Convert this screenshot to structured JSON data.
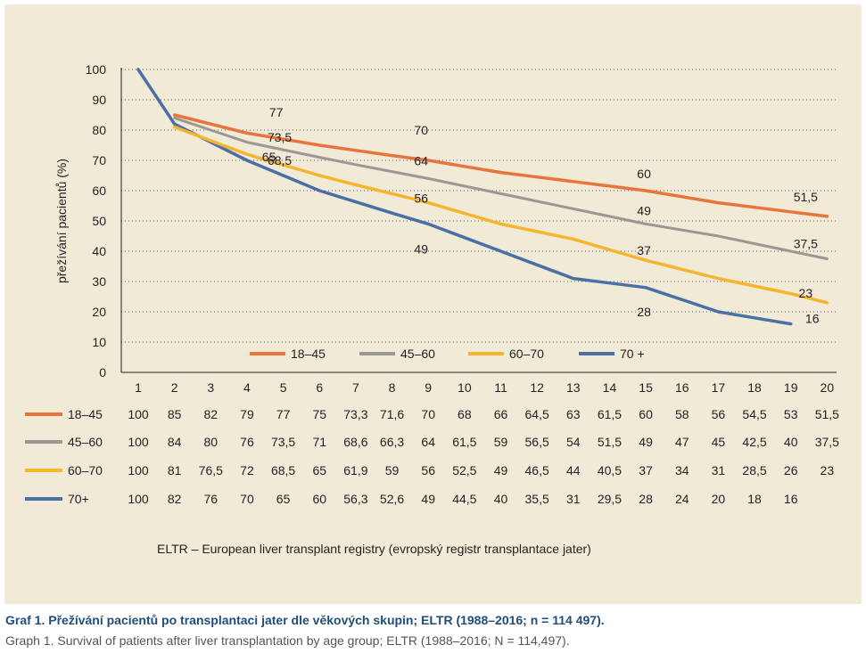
{
  "chart_data": {
    "type": "line",
    "title": "",
    "xlabel": "",
    "ylabel": "přežívání pacientů (%)",
    "ylim": [
      0,
      100
    ],
    "yticks": [
      0,
      10,
      20,
      30,
      40,
      50,
      60,
      70,
      80,
      90,
      100
    ],
    "x": [
      1,
      2,
      3,
      4,
      5,
      6,
      7,
      8,
      9,
      10,
      11,
      12,
      13,
      14,
      15,
      16,
      17,
      18,
      19,
      20
    ],
    "grid": "horizontal dotted",
    "legend_placement": "bottom-center inside plot",
    "series": [
      {
        "name": "18–45",
        "color": "#e8743b",
        "values": [
          100,
          85,
          82,
          79,
          77,
          75,
          73.3,
          71.6,
          70,
          68,
          66,
          64.5,
          63,
          61.5,
          60,
          58,
          56,
          54.5,
          53,
          51.5
        ],
        "values_text": [
          "100",
          "85",
          "82",
          "79",
          "77",
          "75",
          "73,3",
          "71,6",
          "70",
          "68",
          "66",
          "64,5",
          "63",
          "61,5",
          "60",
          "58",
          "56",
          "54,5",
          "53",
          "51,5"
        ]
      },
      {
        "name": "45–60",
        "color": "#9a9893",
        "values": [
          100,
          84,
          80,
          76,
          73.5,
          71,
          68.6,
          66.3,
          64,
          61.5,
          59,
          56.5,
          54,
          51.5,
          49,
          47,
          45,
          42.5,
          40,
          37.5
        ],
        "values_text": [
          "100",
          "84",
          "80",
          "76",
          "73,5",
          "71",
          "68,6",
          "66,3",
          "64",
          "61,5",
          "59",
          "56,5",
          "54",
          "51,5",
          "49",
          "47",
          "45",
          "42,5",
          "40",
          "37,5"
        ]
      },
      {
        "name": "60–70",
        "color": "#f5b52e",
        "values": [
          100,
          81,
          76.5,
          72,
          68.5,
          65,
          61.9,
          59,
          56,
          52.5,
          49,
          46.5,
          44,
          40.5,
          37,
          34,
          31,
          28.5,
          26,
          23
        ],
        "values_text": [
          "100",
          "81",
          "76,5",
          "72",
          "68,5",
          "65",
          "61,9",
          "59",
          "56",
          "52,5",
          "49",
          "46,5",
          "44",
          "40,5",
          "37",
          "34",
          "31",
          "28,5",
          "26",
          "23"
        ]
      },
      {
        "name": "70 +",
        "table_name": "70+",
        "color": "#4a6fa5",
        "values": [
          100,
          82,
          76,
          70,
          65,
          60,
          56.3,
          52.6,
          49,
          44.5,
          40,
          35.5,
          31,
          29.5,
          28,
          24,
          20,
          18,
          16,
          null
        ],
        "values_text": [
          "100",
          "82",
          "76",
          "70",
          "65",
          "60",
          "56,3",
          "52,6",
          "49",
          "44,5",
          "40",
          "35,5",
          "31",
          "29,5",
          "28",
          "24",
          "20",
          "18",
          "16",
          ""
        ]
      }
    ],
    "annotations": [
      {
        "text": "77",
        "x": 5,
        "y": 77
      },
      {
        "text": "73,5",
        "x": 5,
        "y": 73.5
      },
      {
        "text": "68,5",
        "x": 5,
        "y": 68.5
      },
      {
        "text": "65",
        "x": 5,
        "y": 65
      },
      {
        "text": "70",
        "x": 9,
        "y": 70
      },
      {
        "text": "64",
        "x": 9,
        "y": 64
      },
      {
        "text": "56",
        "x": 9,
        "y": 56
      },
      {
        "text": "49",
        "x": 9,
        "y": 49
      },
      {
        "text": "60",
        "x": 15,
        "y": 60
      },
      {
        "text": "49",
        "x": 15,
        "y": 49
      },
      {
        "text": "37",
        "x": 15,
        "y": 37
      },
      {
        "text": "28",
        "x": 15,
        "y": 28
      },
      {
        "text": "51,5",
        "x": 20,
        "y": 51.5
      },
      {
        "text": "37,5",
        "x": 20,
        "y": 37.5
      },
      {
        "text": "23",
        "x": 20,
        "y": 23
      },
      {
        "text": "16",
        "x": 19,
        "y": 16
      }
    ]
  },
  "footnote": "ELTR – European liver transplant registry (evropský registr transplantace jater)",
  "caption": {
    "cz": "Graf 1. Přežívání pacientů po transplantaci jater dle věkových skupin; ELTR (1988–2016; n = 114 497).",
    "en": "Graph 1. Survival of patients after liver transplantation by age group; ELTR (1988–2016; N = 114,497)."
  }
}
